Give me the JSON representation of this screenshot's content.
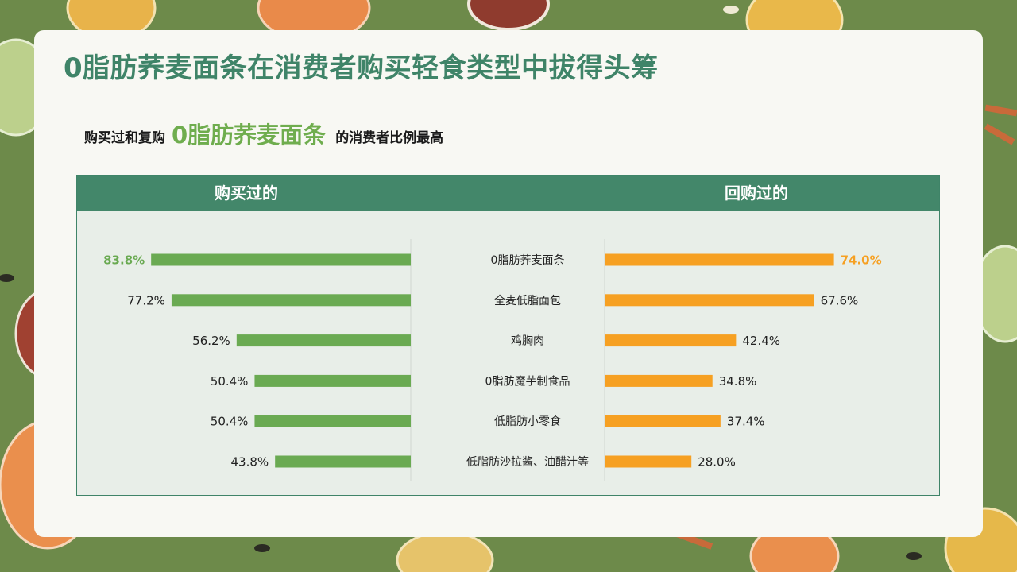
{
  "title": "0脂肪荞麦面条在消费者购买轻食类型中拔得头筹",
  "subtitle": {
    "prefix": "购买过和复购",
    "highlight": "0脂肪荞麦面条",
    "suffix": "的消费者比例最高"
  },
  "colors": {
    "title": "#3f8468",
    "header_bg": "#43876a",
    "bar_left": "#6aaa52",
    "bar_right": "#f6a022",
    "highlight_left_label": "#6aaa52",
    "highlight_right_label": "#f6a022"
  },
  "chart_data": {
    "type": "bar",
    "orientation": "horizontal",
    "layout": "butterfly",
    "categories": [
      "0脂肪荞麦面条",
      "全麦低脂面包",
      "鸡胸肉",
      "0脂肪魔芋制食品",
      "低脂肪小零食",
      "低脂肪沙拉酱、油醋汁等"
    ],
    "series": [
      {
        "name": "购买过的",
        "values": [
          83.8,
          77.2,
          56.2,
          50.4,
          50.4,
          43.8
        ]
      },
      {
        "name": "回购过的",
        "values": [
          74.0,
          67.6,
          42.4,
          34.8,
          37.4,
          28.0
        ]
      }
    ],
    "value_labels": {
      "left": [
        "83.8%",
        "77.2%",
        "56.2%",
        "50.4%",
        "50.4%",
        "43.8%"
      ],
      "right": [
        "74.0%",
        "67.6%",
        "42.4%",
        "34.8%",
        "37.4%",
        "28.0%"
      ]
    },
    "highlight_index": 0,
    "xlim": [
      0,
      100
    ],
    "grid": false,
    "legend": "column headers"
  }
}
